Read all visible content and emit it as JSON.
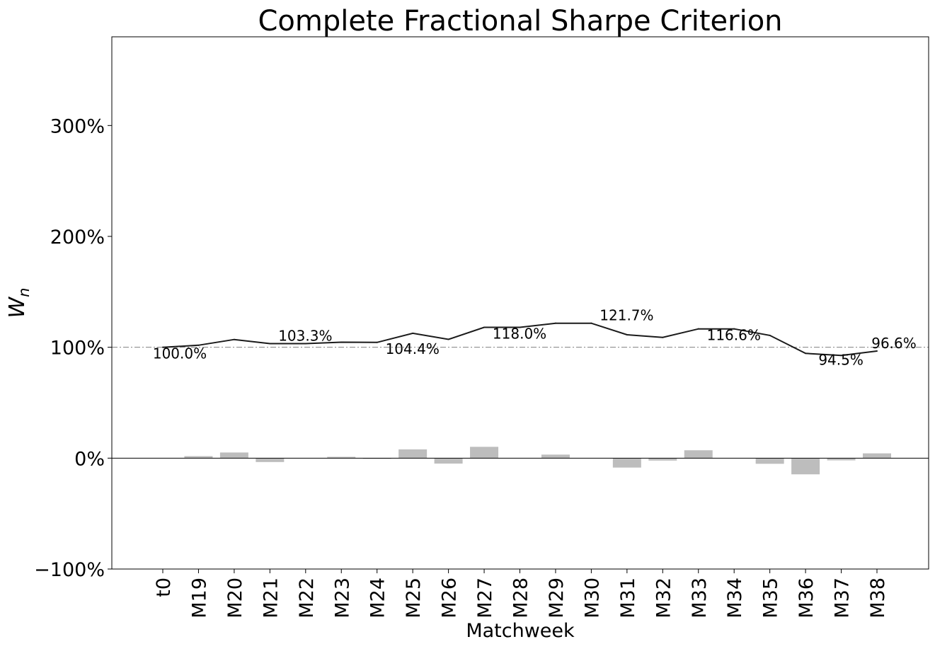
{
  "chart_data": {
    "type": "line",
    "title": "Complete Fractional Sharpe Criterion",
    "xlabel": "Matchweek",
    "ylabel_main": "W",
    "ylabel_sub": "n",
    "categories": [
      "t0",
      "M19",
      "M20",
      "M21",
      "M22",
      "M23",
      "M24",
      "M25",
      "M26",
      "M27",
      "M28",
      "M29",
      "M30",
      "M31",
      "M32",
      "M33",
      "M34",
      "M35",
      "M36",
      "M37",
      "M38"
    ],
    "series": [
      {
        "type": "line",
        "color": "#1a1a1a",
        "values": [
          100.0,
          101.8,
          107.0,
          103.3,
          103.3,
          104.6,
          104.4,
          112.6,
          107.1,
          118.0,
          118.0,
          121.7,
          121.7,
          111.3,
          108.9,
          116.6,
          116.6,
          110.7,
          94.5,
          92.6,
          96.6
        ]
      },
      {
        "type": "bar",
        "color": "#bdbdbd",
        "values": [
          0.0,
          1.8,
          5.1,
          -3.5,
          0.0,
          1.2,
          -0.2,
          7.9,
          -4.9,
          10.2,
          0.0,
          3.2,
          0.0,
          -8.5,
          -2.2,
          7.1,
          0.0,
          -5.1,
          -14.6,
          -2.0,
          4.3
        ]
      }
    ],
    "reference_lines": [
      {
        "value": 100,
        "style": "dashdot",
        "color": "#808080"
      },
      {
        "value": 0,
        "style": "solid",
        "color": "#000000"
      }
    ],
    "annotations": [
      {
        "index": 0,
        "text": "100.0%",
        "placement": "below"
      },
      {
        "index": 3,
        "text": "103.3%",
        "placement": "above"
      },
      {
        "index": 6,
        "text": "104.4%",
        "placement": "below"
      },
      {
        "index": 9,
        "text": "118.0%",
        "placement": "below"
      },
      {
        "index": 12,
        "text": "121.7%",
        "placement": "above"
      },
      {
        "index": 15,
        "text": "116.6%",
        "placement": "below"
      },
      {
        "index": 18,
        "text": "94.5%",
        "placement": "below"
      },
      {
        "index": 20,
        "text": "96.6%",
        "placement": "above"
      }
    ],
    "ylim": [
      -100,
      380
    ],
    "yticks": [
      -100,
      0,
      100,
      200,
      300
    ],
    "ytick_labels": [
      "−100%",
      "0%",
      "100%",
      "200%",
      "300%"
    ],
    "grid": false,
    "legend": "none"
  }
}
